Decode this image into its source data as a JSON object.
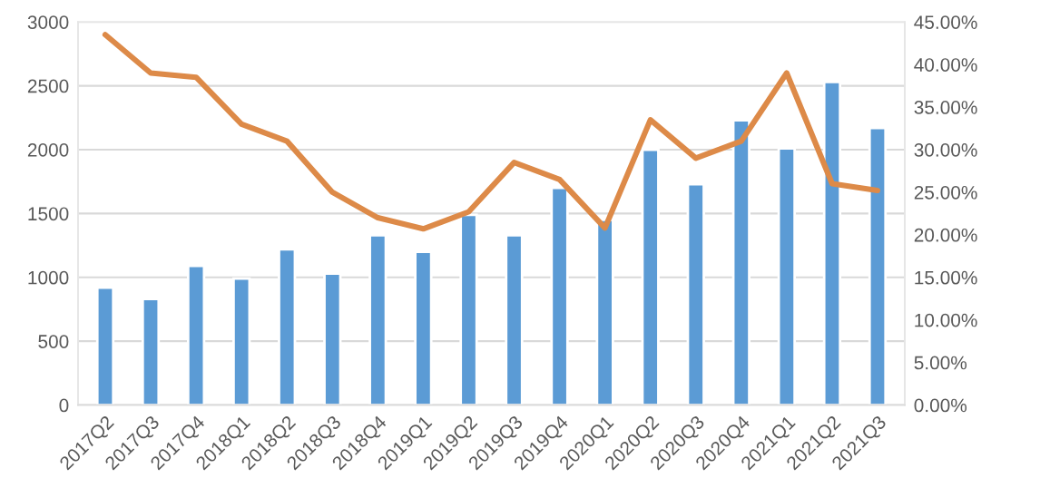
{
  "chart_data": {
    "type": "bar",
    "categories": [
      "2017Q2",
      "2017Q3",
      "2017Q4",
      "2018Q1",
      "2018Q2",
      "2018Q3",
      "2018Q4",
      "2019Q1",
      "2019Q2",
      "2019Q3",
      "2019Q4",
      "2020Q1",
      "2020Q2",
      "2020Q3",
      "2020Q4",
      "2021Q1",
      "2021Q2",
      "2021Q3"
    ],
    "series": [
      {
        "color": "#5b9bd5",
        "values": [
          920,
          830,
          1090,
          990,
          1220,
          1030,
          1330,
          1200,
          1490,
          1330,
          1700,
          1450,
          2000,
          1730,
          2230,
          2010,
          2530,
          2170
        ]
      },
      {
        "type": "line",
        "axis": "y2",
        "color": "#dd8a48",
        "values": [
          43.5,
          39,
          38.5,
          33,
          31,
          25,
          22,
          20.7,
          22.7,
          28.5,
          26.5,
          20.8,
          33.5,
          29,
          31,
          39,
          26,
          25.2
        ]
      }
    ],
    "ylim": [
      0,
      3000
    ],
    "yticks": [
      0,
      500,
      1000,
      1500,
      2000,
      2500,
      3000
    ],
    "y2lim": [
      0,
      45
    ],
    "y2ticks": [
      {
        "value": 0,
        "label": "0.00%"
      },
      {
        "value": 5,
        "label": "5.00%"
      },
      {
        "value": 10,
        "label": "10.00%"
      },
      {
        "value": 15,
        "label": "15.00%"
      },
      {
        "value": 20,
        "label": "20.00%"
      },
      {
        "value": 25,
        "label": "25.00%"
      },
      {
        "value": 30,
        "label": "30.00%"
      },
      {
        "value": 35,
        "label": "35.00%"
      },
      {
        "value": 40,
        "label": "40.00%"
      },
      {
        "value": 45,
        "label": "45.00%"
      }
    ],
    "grid": "y",
    "line_style": "solid",
    "marker": "none"
  }
}
